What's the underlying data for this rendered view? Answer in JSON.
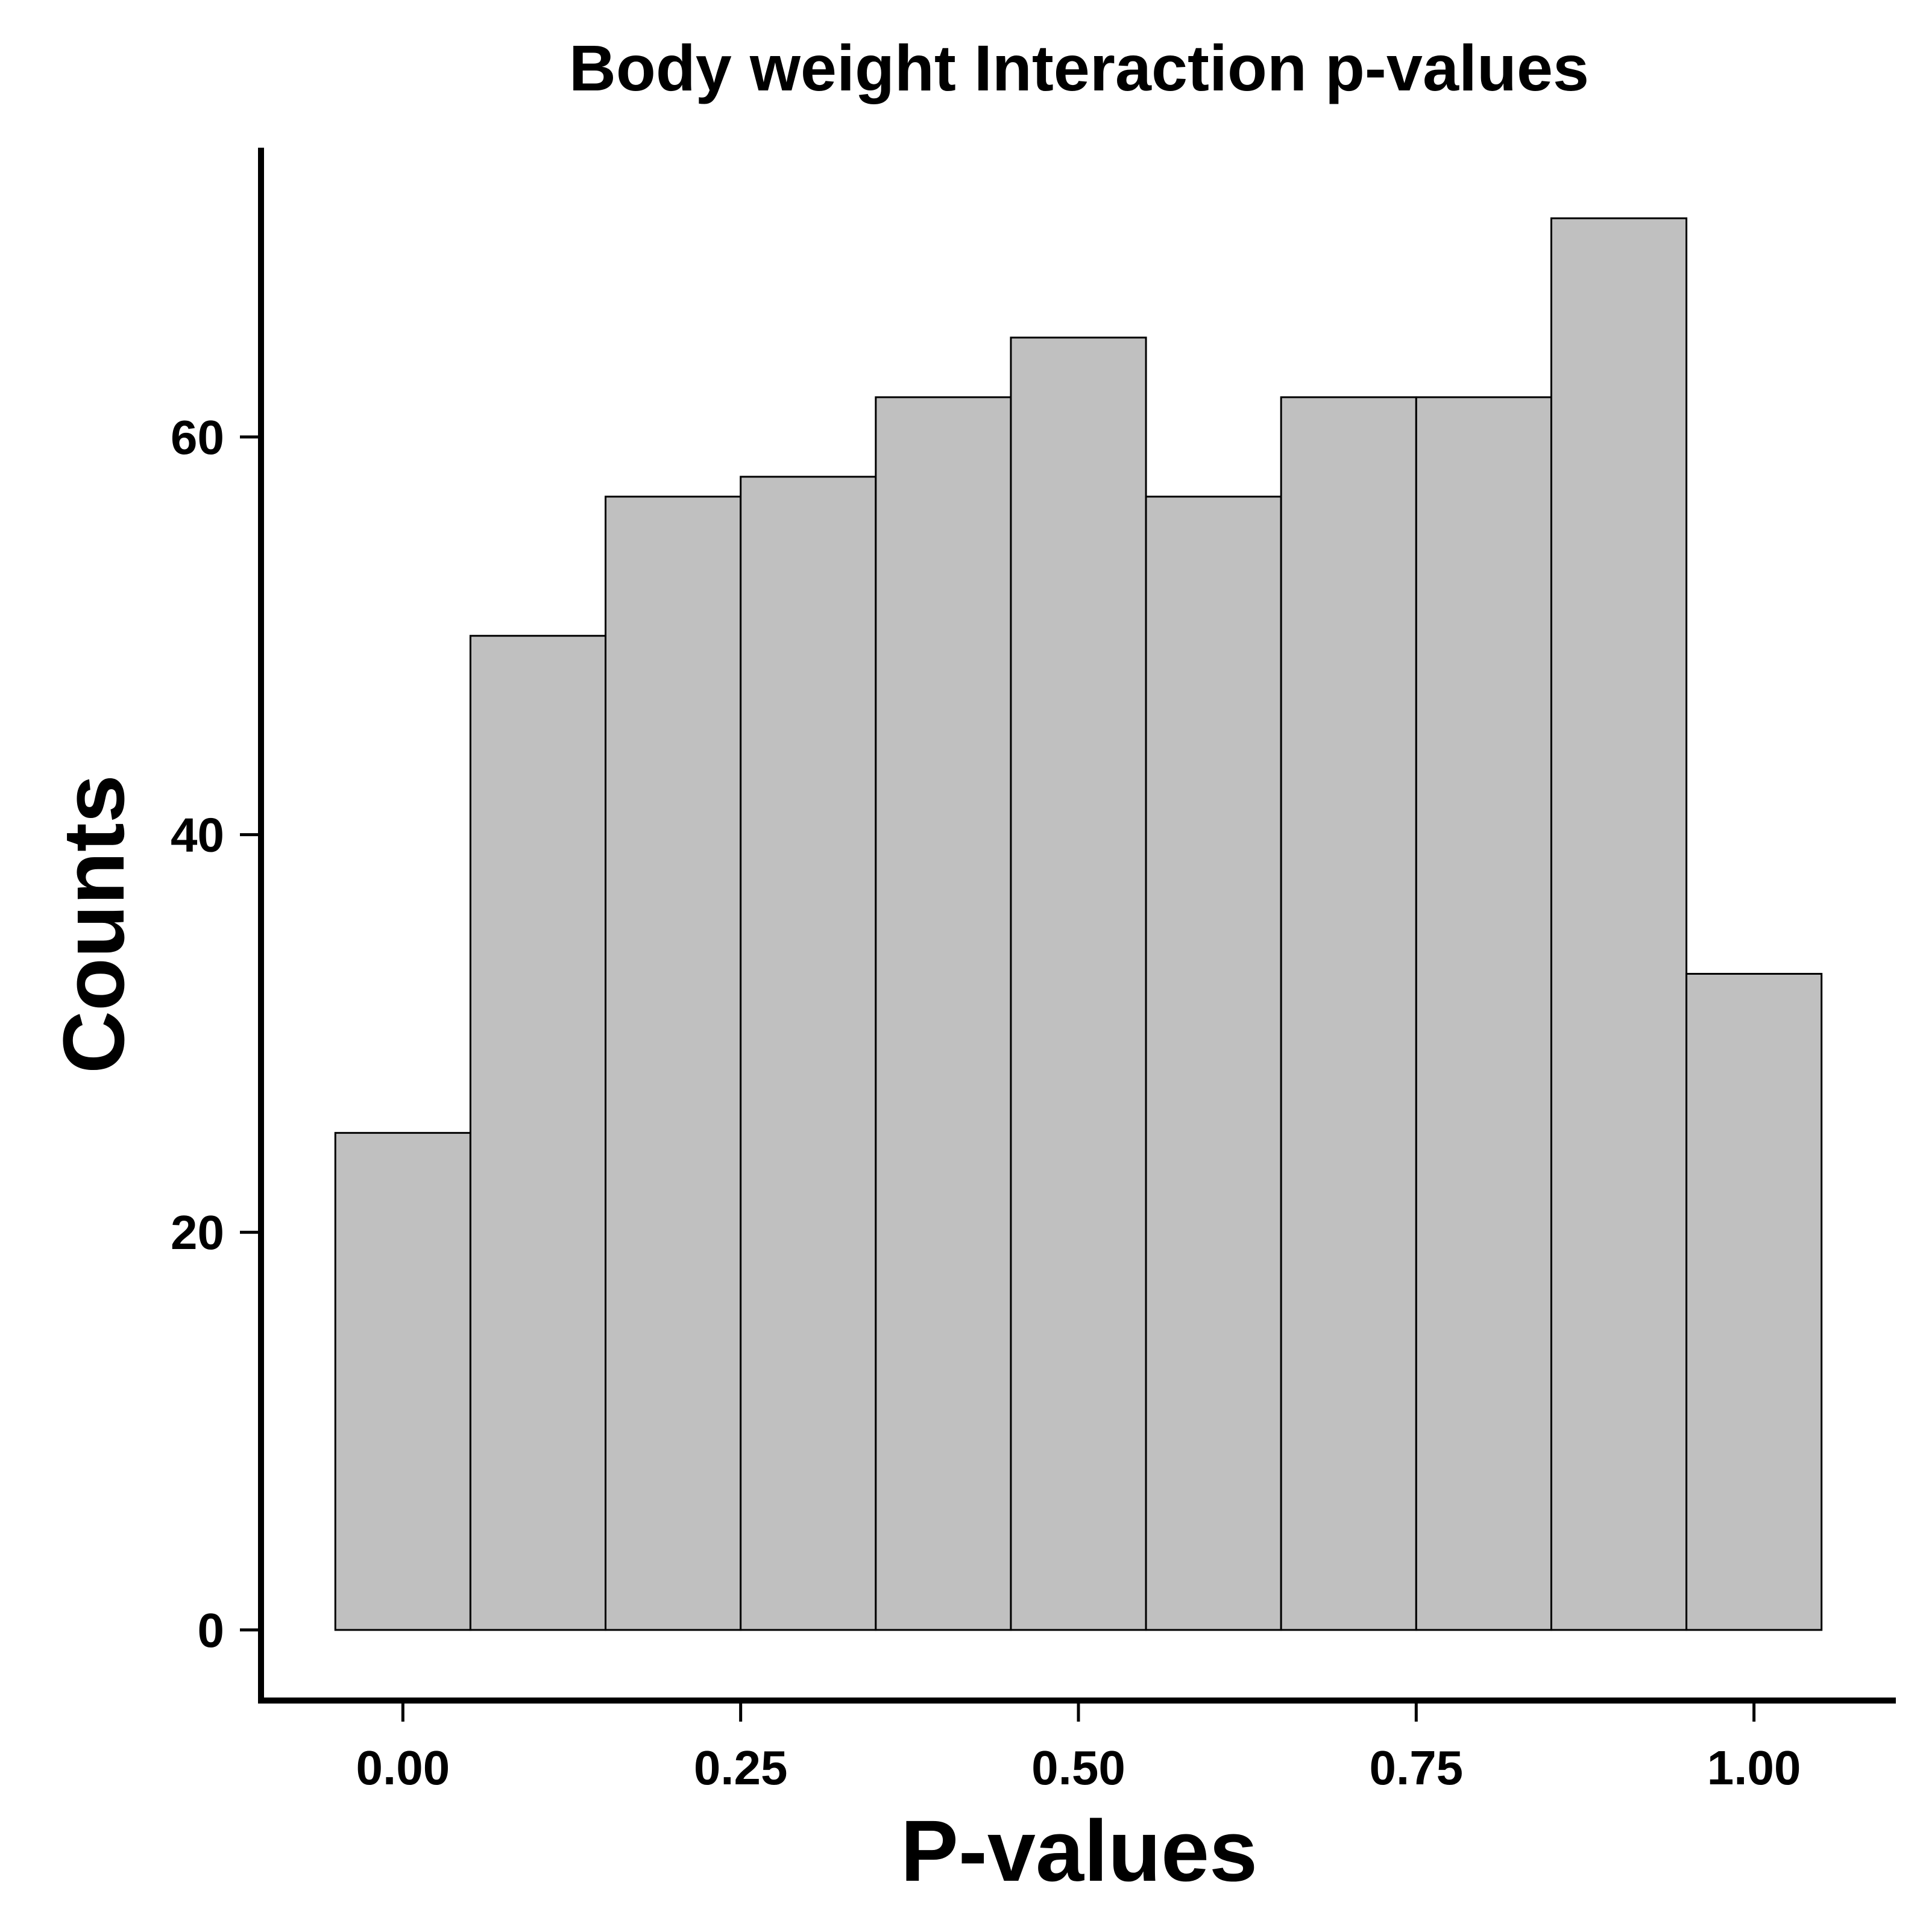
{
  "chart_data": {
    "type": "bar",
    "title": "Body weight Interaction p-values",
    "xlabel": "P-values",
    "ylabel": "Counts",
    "bins": [
      {
        "x0": -0.05,
        "x1": 0.05,
        "count": 25
      },
      {
        "x0": 0.05,
        "x1": 0.15,
        "count": 50
      },
      {
        "x0": 0.15,
        "x1": 0.25,
        "count": 57
      },
      {
        "x0": 0.25,
        "x1": 0.35,
        "count": 58
      },
      {
        "x0": 0.35,
        "x1": 0.45,
        "count": 62
      },
      {
        "x0": 0.45,
        "x1": 0.55,
        "count": 65
      },
      {
        "x0": 0.55,
        "x1": 0.65,
        "count": 57
      },
      {
        "x0": 0.65,
        "x1": 0.75,
        "count": 62
      },
      {
        "x0": 0.75,
        "x1": 0.85,
        "count": 62
      },
      {
        "x0": 0.85,
        "x1": 0.95,
        "count": 71
      },
      {
        "x0": 0.95,
        "x1": 1.05,
        "count": 33
      }
    ],
    "xlim": [
      -0.105,
      1.105
    ],
    "ylim": [
      -3.55,
      74.55
    ],
    "x_ticks": [
      {
        "value": 0.0,
        "label": "0.00"
      },
      {
        "value": 0.25,
        "label": "0.25"
      },
      {
        "value": 0.5,
        "label": "0.50"
      },
      {
        "value": 0.75,
        "label": "0.75"
      },
      {
        "value": 1.0,
        "label": "1.00"
      }
    ],
    "y_ticks": [
      {
        "value": 0,
        "label": "0"
      },
      {
        "value": 20,
        "label": "20"
      },
      {
        "value": 40,
        "label": "40"
      },
      {
        "value": 60,
        "label": "60"
      }
    ],
    "grid": false,
    "legend": "none",
    "colors": {
      "bar_fill": "#c0c0c0",
      "bar_stroke": "#000000",
      "axis": "#000000",
      "background": "#ffffff"
    }
  }
}
